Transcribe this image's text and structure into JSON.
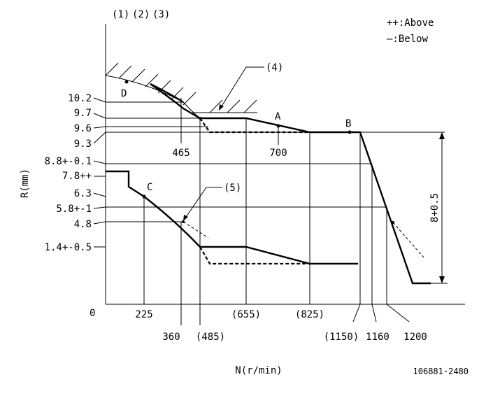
{
  "header": {
    "labels": [
      "(1)",
      "(2)",
      "(3)"
    ]
  },
  "legend": {
    "above": "++:Above",
    "below": "—:Below"
  },
  "axes": {
    "y_label": "R(mm)",
    "x_label": "N(r/min)",
    "origin": "0"
  },
  "y_ticks": [
    "10.2",
    "9.7",
    "9.6",
    "9.3",
    "8.8+-0.1",
    "7.8++",
    "6.3",
    "5.8+-1",
    "4.8",
    "1.4+-0.5"
  ],
  "x_ticks_row1": [
    "225",
    "(655)",
    "(825)"
  ],
  "x_ticks_row2": [
    "360",
    "(485)",
    "(1150)",
    "1160",
    "1200"
  ],
  "inline_labels": {
    "n465": "465",
    "n700": "700",
    "point_a": "A",
    "point_b": "B",
    "point_c": "C",
    "point_d": "D",
    "callout_4": "(4)",
    "callout_5": "(5)",
    "span": "8+0.5"
  },
  "figure_id": "106881-2480"
}
